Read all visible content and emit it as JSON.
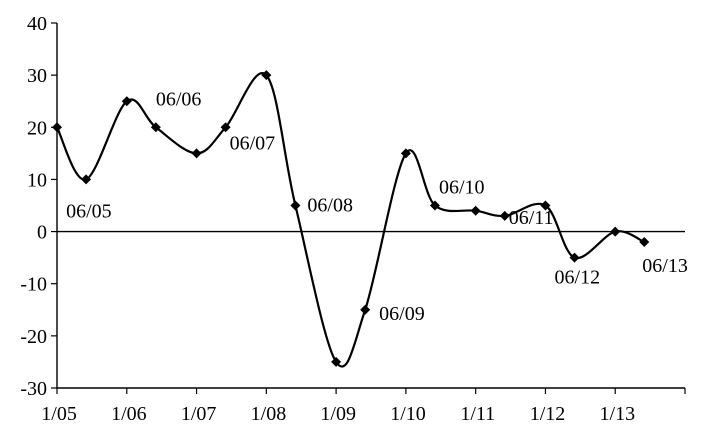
{
  "chart_data": {
    "type": "line",
    "title": "",
    "xlabel": "",
    "ylabel": "",
    "ylim": [
      -30,
      40
    ],
    "y_ticks": [
      -30,
      -20,
      -10,
      0,
      10,
      20,
      30,
      40
    ],
    "x_ticks": [
      "1/05",
      "1/06",
      "1/07",
      "1/08",
      "1/09",
      "1/10",
      "1/11",
      "1/12",
      "1/13"
    ],
    "grid": false,
    "smoothed": true,
    "marker": "diamond",
    "series": [
      {
        "points": [
          {
            "x": "01/2005",
            "y": 20
          },
          {
            "x": "06/2005",
            "y": 10,
            "label": "06/05"
          },
          {
            "x": "01/2006",
            "y": 25
          },
          {
            "x": "06/2006",
            "y": 20,
            "label": "06/06"
          },
          {
            "x": "01/2007",
            "y": 15
          },
          {
            "x": "06/2007",
            "y": 20,
            "label": "06/07"
          },
          {
            "x": "01/2008",
            "y": 30
          },
          {
            "x": "06/2008",
            "y": 5,
            "label": "06/08"
          },
          {
            "x": "01/2009",
            "y": -25
          },
          {
            "x": "06/2009",
            "y": -15,
            "label": "06/09"
          },
          {
            "x": "01/2010",
            "y": 15
          },
          {
            "x": "06/2010",
            "y": 5,
            "label": "06/10"
          },
          {
            "x": "01/2011",
            "y": 4
          },
          {
            "x": "06/2011",
            "y": 3,
            "label": "06/11"
          },
          {
            "x": "01/2012",
            "y": 5
          },
          {
            "x": "06/2012",
            "y": -5,
            "label": "06/12"
          },
          {
            "x": "01/2013",
            "y": 0
          },
          {
            "x": "06/2013",
            "y": -2,
            "label": "06/13"
          }
        ]
      }
    ]
  }
}
